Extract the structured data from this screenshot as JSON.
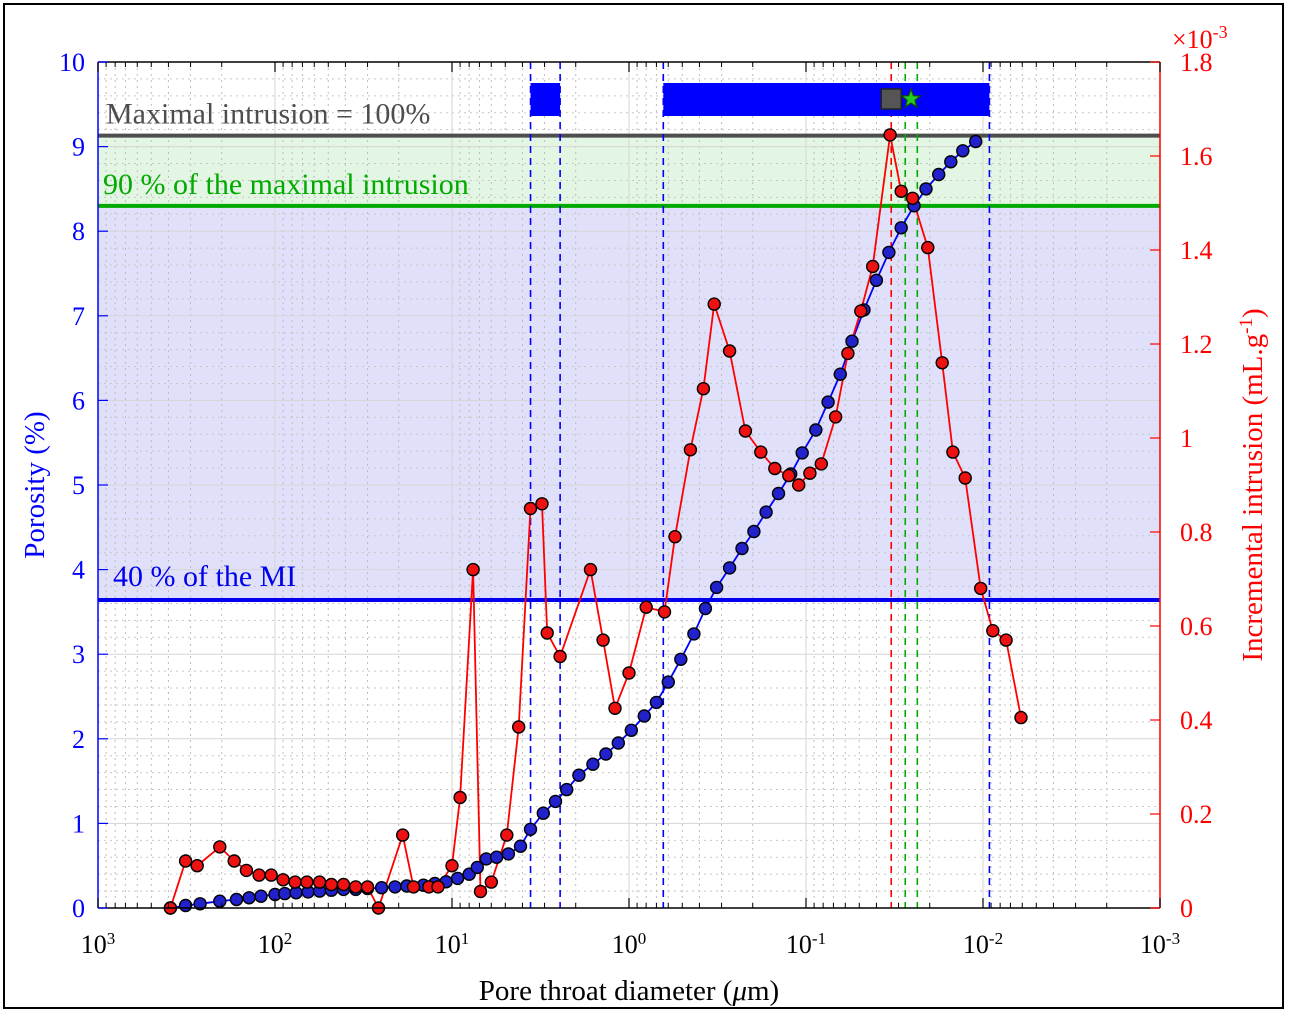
{
  "chart_data": {
    "type": "line",
    "xlabel": "Pore throat diameter (μm)",
    "ylabel_left": "Porosity (%)",
    "ylabel_right": "Incremental intrusion (mL.g⁻¹)",
    "right_axis_exponent": "×10⁻³",
    "x_scale": "log",
    "x_reversed": true,
    "xlim": [
      1000,
      0.001
    ],
    "x_tick_labels": [
      "10³",
      "10²",
      "10¹",
      "10⁰",
      "10⁻¹",
      "10⁻²",
      "10⁻³"
    ],
    "x_tick_values": [
      1000,
      100,
      10,
      1,
      0.1,
      0.01,
      0.001
    ],
    "ylim_left": [
      0,
      10
    ],
    "y_left_ticks": [
      "0",
      "1",
      "2",
      "3",
      "4",
      "5",
      "6",
      "7",
      "8",
      "9",
      "10"
    ],
    "ylim_right": [
      0,
      1.8
    ],
    "y_right_ticks": [
      "0",
      "0.2",
      "0.4",
      "0.6",
      "0.8",
      "1",
      "1.2",
      "1.4",
      "1.6",
      "1.8"
    ],
    "grid": true,
    "colors": {
      "porosity": "#0000ff",
      "incremental": "#ff0000",
      "max_line": "#4d4d4d",
      "ninety_line": "#00aa00",
      "forty_line": "#0000ee",
      "green_band": "#e3f5e3",
      "blue_band": "#e0e0fa",
      "bar": "#0000ff",
      "square": "#555555",
      "star": "#22cc22"
    },
    "reference_lines": [
      {
        "label": "Maximal intrusion = 100%",
        "y": 9.13
      },
      {
        "label": "90 % of the maximal intrusion",
        "y": 8.3
      },
      {
        "label": "40 % of the MI",
        "y": 3.64
      }
    ],
    "vertical_lines": [
      {
        "x": 3.6,
        "color": "blue"
      },
      {
        "x": 2.45,
        "color": "blue"
      },
      {
        "x": 0.64,
        "color": "blue"
      },
      {
        "x": 0.0092,
        "color": "blue"
      },
      {
        "x": 0.033,
        "color": "red"
      },
      {
        "x": 0.0275,
        "color": "green"
      },
      {
        "x": 0.0235,
        "color": "green"
      }
    ],
    "bars": [
      {
        "x_from": 3.6,
        "x_to": 2.45
      },
      {
        "x_from": 0.64,
        "x_to": 0.0092
      }
    ],
    "markers": [
      {
        "type": "square",
        "x": 0.033
      },
      {
        "type": "star",
        "x": 0.0255
      }
    ],
    "series": [
      {
        "name": "Porosity",
        "axis": "left",
        "points": [
          [
            390,
            0.0
          ],
          [
            320,
            0.03
          ],
          [
            265,
            0.05
          ],
          [
            205,
            0.08
          ],
          [
            165,
            0.1
          ],
          [
            140,
            0.12
          ],
          [
            120,
            0.14
          ],
          [
            100,
            0.16
          ],
          [
            88,
            0.17
          ],
          [
            76,
            0.18
          ],
          [
            65,
            0.19
          ],
          [
            56,
            0.2
          ],
          [
            48,
            0.21
          ],
          [
            41,
            0.22
          ],
          [
            35,
            0.22
          ],
          [
            30,
            0.23
          ],
          [
            25,
            0.24
          ],
          [
            21,
            0.25
          ],
          [
            18,
            0.26
          ],
          [
            14.5,
            0.27
          ],
          [
            12.5,
            0.29
          ],
          [
            10.8,
            0.31
          ],
          [
            9.3,
            0.35
          ],
          [
            8,
            0.4
          ],
          [
            7.2,
            0.48
          ],
          [
            6.4,
            0.58
          ],
          [
            5.6,
            0.6
          ],
          [
            4.8,
            0.64
          ],
          [
            4.1,
            0.73
          ],
          [
            3.6,
            0.93
          ],
          [
            3.05,
            1.12
          ],
          [
            2.6,
            1.26
          ],
          [
            2.25,
            1.4
          ],
          [
            1.92,
            1.57
          ],
          [
            1.6,
            1.7
          ],
          [
            1.35,
            1.82
          ],
          [
            1.15,
            1.95
          ],
          [
            0.97,
            2.1
          ],
          [
            0.82,
            2.27
          ],
          [
            0.7,
            2.43
          ],
          [
            0.6,
            2.67
          ],
          [
            0.51,
            2.94
          ],
          [
            0.43,
            3.24
          ],
          [
            0.37,
            3.54
          ],
          [
            0.32,
            3.79
          ],
          [
            0.27,
            4.02
          ],
          [
            0.23,
            4.25
          ],
          [
            0.197,
            4.45
          ],
          [
            0.168,
            4.68
          ],
          [
            0.143,
            4.9
          ],
          [
            0.122,
            5.13
          ],
          [
            0.105,
            5.38
          ],
          [
            0.088,
            5.65
          ],
          [
            0.075,
            5.98
          ],
          [
            0.064,
            6.31
          ],
          [
            0.055,
            6.7
          ],
          [
            0.047,
            7.07
          ],
          [
            0.04,
            7.42
          ],
          [
            0.034,
            7.75
          ],
          [
            0.029,
            8.04
          ],
          [
            0.0245,
            8.3
          ],
          [
            0.021,
            8.5
          ],
          [
            0.0178,
            8.67
          ],
          [
            0.0152,
            8.82
          ],
          [
            0.013,
            8.95
          ],
          [
            0.011,
            9.06
          ]
        ]
      },
      {
        "name": "Incremental intrusion",
        "axis": "right",
        "points": [
          [
            390,
            0.0
          ],
          [
            320,
            0.1
          ],
          [
            275,
            0.09
          ],
          [
            205,
            0.13
          ],
          [
            170,
            0.1
          ],
          [
            145,
            0.08
          ],
          [
            123,
            0.07
          ],
          [
            105,
            0.07
          ],
          [
            90,
            0.06
          ],
          [
            77,
            0.055
          ],
          [
            66,
            0.055
          ],
          [
            56,
            0.055
          ],
          [
            48,
            0.05
          ],
          [
            41,
            0.05
          ],
          [
            35,
            0.045
          ],
          [
            30,
            0.045
          ],
          [
            26,
            0.0
          ],
          [
            19,
            0.155
          ],
          [
            16.5,
            0.045
          ],
          [
            13.5,
            0.045
          ],
          [
            12,
            0.045
          ],
          [
            10,
            0.09
          ],
          [
            9,
            0.235
          ],
          [
            7.6,
            0.72
          ],
          [
            6.9,
            0.035
          ],
          [
            6,
            0.055
          ],
          [
            4.9,
            0.155
          ],
          [
            4.2,
            0.385
          ],
          [
            3.6,
            0.85
          ],
          [
            3.1,
            0.86
          ],
          [
            2.9,
            0.585
          ],
          [
            2.45,
            0.535
          ],
          [
            1.65,
            0.72
          ],
          [
            1.4,
            0.57
          ],
          [
            1.2,
            0.425
          ],
          [
            1.0,
            0.5
          ],
          [
            0.8,
            0.64
          ],
          [
            0.63,
            0.63
          ],
          [
            0.55,
            0.79
          ],
          [
            0.45,
            0.975
          ],
          [
            0.38,
            1.105
          ],
          [
            0.33,
            1.285
          ],
          [
            0.27,
            1.185
          ],
          [
            0.22,
            1.015
          ],
          [
            0.18,
            0.97
          ],
          [
            0.15,
            0.935
          ],
          [
            0.125,
            0.92
          ],
          [
            0.11,
            0.9
          ],
          [
            0.095,
            0.925
          ],
          [
            0.082,
            0.945
          ],
          [
            0.068,
            1.045
          ],
          [
            0.058,
            1.18
          ],
          [
            0.049,
            1.27
          ],
          [
            0.042,
            1.365
          ],
          [
            0.0335,
            1.645
          ],
          [
            0.029,
            1.525
          ],
          [
            0.025,
            1.51
          ],
          [
            0.0205,
            1.405
          ],
          [
            0.017,
            1.16
          ],
          [
            0.0148,
            0.97
          ],
          [
            0.0126,
            0.915
          ],
          [
            0.0103,
            0.68
          ],
          [
            0.0088,
            0.59
          ],
          [
            0.0074,
            0.57
          ],
          [
            0.0061,
            0.405
          ]
        ]
      }
    ]
  }
}
